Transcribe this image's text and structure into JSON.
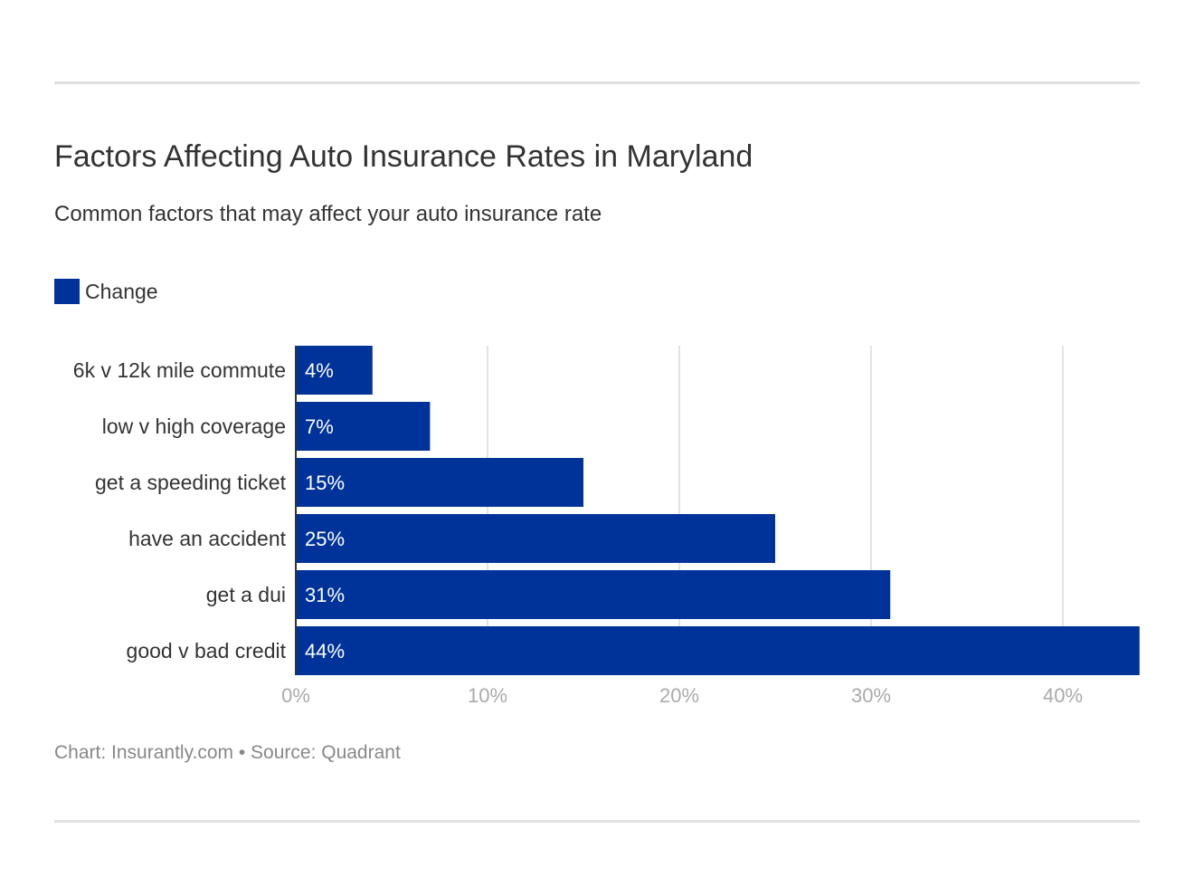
{
  "title": "Factors Affecting Auto Insurance Rates in Maryland",
  "subtitle": "Common factors that may affect your auto insurance rate",
  "footer": "Chart: Insurantly.com • Source: Quadrant",
  "chart_data": {
    "type": "bar",
    "orientation": "horizontal",
    "categories": [
      "6k v 12k mile commute",
      "low v high coverage",
      "get a speeding ticket",
      "have an accident",
      "get a dui",
      "good v bad credit"
    ],
    "series": [
      {
        "name": "Change",
        "values": [
          4,
          7,
          15,
          25,
          31,
          44
        ],
        "color": "#003399"
      }
    ],
    "data_labels": [
      "4%",
      "7%",
      "15%",
      "25%",
      "31%",
      "44%"
    ],
    "xlim": [
      0,
      44
    ],
    "xticks": [
      0,
      10,
      20,
      30,
      40
    ],
    "xtick_labels": [
      "0%",
      "10%",
      "20%",
      "30%",
      "40%"
    ],
    "grid": true,
    "legend": "top-left"
  }
}
